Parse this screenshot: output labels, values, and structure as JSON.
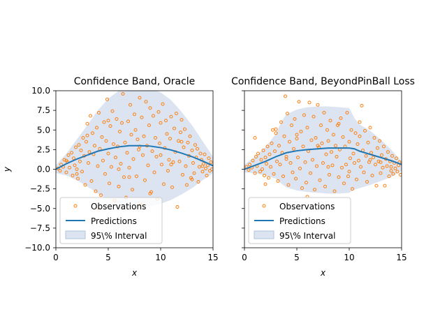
{
  "colors": {
    "observations": "#ff7f0e",
    "predictions": "#1f77b4",
    "band": "#b0c4de"
  },
  "chart_data": [
    {
      "type": "scatter",
      "title": "Confidence Band, Oracle",
      "xlabel": "x",
      "ylabel": "y",
      "xlim": [
        0,
        15
      ],
      "ylim": [
        -10,
        10
      ],
      "xticks": [
        "0",
        "5",
        "10",
        "15"
      ],
      "yticks": [
        "−10.0",
        "−7.5",
        "−5.0",
        "−2.5",
        "0.0",
        "2.5",
        "5.0",
        "7.5",
        "10.0"
      ],
      "legend": {
        "position": "lower-left",
        "entries": [
          "Observations",
          "Predictions",
          "95\\% Interval"
        ]
      },
      "prediction": {
        "x": [
          0,
          1,
          2,
          3,
          4,
          5,
          6,
          7,
          8,
          9,
          10,
          11,
          12,
          13,
          14,
          15
        ],
        "y": [
          0.0,
          0.7,
          1.3,
          1.8,
          2.3,
          2.6,
          2.85,
          3.0,
          3.0,
          2.95,
          2.75,
          2.45,
          2.05,
          1.6,
          1.05,
          0.45
        ]
      },
      "band": {
        "x": [
          0,
          1,
          2,
          3,
          4,
          5,
          6,
          7,
          8,
          9,
          10,
          11,
          12,
          13,
          14,
          15
        ],
        "upper": [
          0.5,
          2.0,
          3.8,
          5.6,
          7.5,
          9.0,
          10.0,
          10.5,
          10.5,
          10.3,
          9.8,
          8.8,
          7.3,
          5.6,
          3.6,
          1.6
        ],
        "lower": [
          -0.5,
          -0.8,
          -1.4,
          -2.2,
          -3.1,
          -3.9,
          -4.4,
          -4.7,
          -4.8,
          -4.7,
          -4.4,
          -3.9,
          -3.2,
          -2.4,
          -1.4,
          -0.5
        ]
      },
      "observations": {
        "x": [
          0.2,
          0.4,
          0.5,
          0.7,
          0.8,
          1.0,
          1.1,
          1.2,
          1.3,
          1.5,
          1.6,
          1.7,
          1.8,
          1.9,
          2.0,
          2.1,
          2.2,
          2.3,
          2.4,
          2.5,
          2.6,
          2.7,
          2.8,
          2.9,
          3.0,
          3.1,
          3.2,
          3.3,
          3.4,
          3.5,
          3.6,
          3.7,
          3.8,
          3.9,
          4.0,
          4.1,
          4.2,
          4.3,
          4.4,
          4.5,
          4.6,
          4.7,
          4.8,
          4.9,
          5.0,
          5.1,
          5.2,
          5.3,
          5.4,
          5.5,
          5.6,
          5.7,
          5.8,
          5.9,
          6.0,
          6.1,
          6.2,
          6.3,
          6.4,
          6.5,
          6.6,
          6.7,
          6.8,
          6.9,
          7.0,
          7.1,
          7.2,
          7.3,
          7.4,
          7.5,
          7.6,
          7.7,
          7.8,
          7.9,
          8.0,
          8.1,
          8.2,
          8.3,
          8.4,
          8.5,
          8.6,
          8.7,
          8.8,
          8.9,
          9.0,
          9.1,
          9.2,
          9.3,
          9.4,
          9.5,
          9.6,
          9.7,
          9.8,
          9.9,
          10.0,
          10.1,
          10.2,
          10.3,
          10.4,
          10.5,
          10.6,
          10.7,
          10.8,
          10.9,
          11.0,
          11.1,
          11.2,
          11.3,
          11.4,
          11.5,
          11.6,
          11.7,
          11.8,
          11.9,
          12.0,
          12.1,
          12.2,
          12.3,
          12.4,
          12.5,
          12.6,
          12.7,
          12.8,
          12.9,
          13.0,
          13.1,
          13.2,
          13.3,
          13.4,
          13.5,
          13.6,
          13.7,
          13.8,
          13.9,
          14.0,
          14.1,
          14.2,
          14.3,
          14.4,
          14.5,
          14.6,
          14.7,
          14.8,
          14.9,
          1.0,
          2.0,
          3.0,
          4.0,
          5.0,
          6.0,
          7.0,
          8.0,
          9.0,
          10.0,
          11.0,
          12.0,
          13.0,
          14.0
        ],
        "y": [
          0.1,
          -0.2,
          0.6,
          0.3,
          1.2,
          -0.4,
          0.9,
          1.8,
          0.2,
          2.1,
          -0.8,
          1.4,
          0.5,
          2.8,
          0.0,
          -1.2,
          3.1,
          1.0,
          2.4,
          -0.3,
          4.0,
          1.7,
          -2.0,
          3.5,
          5.8,
          0.8,
          2.2,
          6.8,
          -1.5,
          4.6,
          1.9,
          3.0,
          -2.8,
          5.3,
          0.4,
          7.2,
          2.6,
          -3.3,
          4.1,
          1.1,
          6.0,
          -0.6,
          3.6,
          8.9,
          2.0,
          -1.8,
          5.5,
          0.3,
          7.4,
          3.2,
          -4.0,
          1.5,
          6.4,
          2.9,
          -2.2,
          4.8,
          0.7,
          5.9,
          9.6,
          -1.0,
          3.4,
          -3.6,
          2.1,
          6.1,
          0.2,
          8.2,
          4.4,
          -2.6,
          1.3,
          7.0,
          5.0,
          -0.9,
          3.8,
          2.5,
          9.1,
          -4.5,
          6.6,
          1.8,
          4.2,
          -1.4,
          8.6,
          3.0,
          0.5,
          5.6,
          7.8,
          -2.9,
          2.3,
          6.8,
          -0.4,
          4.0,
          1.6,
          -3.8,
          7.3,
          3.3,
          5.9,
          0.6,
          8.3,
          -1.9,
          2.7,
          6.2,
          4.5,
          -0.2,
          1.2,
          3.9,
          6.7,
          -2.3,
          0.9,
          5.2,
          2.2,
          7.1,
          -4.8,
          3.6,
          1.0,
          4.7,
          6.3,
          -0.7,
          2.8,
          5.1,
          0.4,
          -2.0,
          3.4,
          1.7,
          4.2,
          -1.1,
          2.4,
          0.8,
          -0.5,
          3.1,
          1.5,
          2.6,
          -1.6,
          0.3,
          2.0,
          1.2,
          -0.3,
          0.7,
          1.9,
          0.1,
          -0.8,
          0.5,
          1.4,
          -0.2,
          0.9,
          0.0,
          1.1,
          -0.6,
          4.3,
          -5.0,
          6.2,
          0.0,
          -1.0,
          2.9,
          -3.1,
          1.8,
          0.6,
          3.5,
          -1.3,
          0.4
        ]
      }
    },
    {
      "type": "scatter",
      "title": "Confidence Band, BeyondPinBall Loss",
      "xlabel": "x",
      "ylabel": "",
      "xlim": [
        0,
        15
      ],
      "ylim": [
        -10,
        10
      ],
      "xticks": [
        "0",
        "5",
        "10",
        "15"
      ],
      "legend": {
        "position": "lower-left",
        "entries": [
          "Observations",
          "Predictions",
          "95\\% Interval"
        ]
      },
      "prediction": {
        "x": [
          0,
          1,
          2,
          3,
          4,
          5,
          6,
          7,
          8,
          9,
          10,
          10.5,
          11,
          12,
          13,
          14,
          15
        ],
        "y": [
          0.0,
          0.5,
          1.0,
          1.6,
          2.1,
          2.35,
          2.5,
          2.6,
          2.7,
          2.7,
          2.7,
          2.6,
          2.3,
          1.9,
          1.5,
          1.1,
          0.6
        ]
      },
      "band": {
        "x": [
          0,
          1,
          2,
          3,
          3.5,
          4,
          5,
          6,
          7,
          8,
          9,
          10,
          10.5,
          11,
          12,
          13,
          14,
          15
        ],
        "upper": [
          0.6,
          1.6,
          2.8,
          4.5,
          6.0,
          7.0,
          7.6,
          7.9,
          8.0,
          8.0,
          7.9,
          7.8,
          6.5,
          5.7,
          4.9,
          3.8,
          2.5,
          1.0
        ],
        "lower": [
          -0.4,
          -0.5,
          -0.8,
          -1.2,
          -1.8,
          -2.3,
          -2.7,
          -2.9,
          -3.0,
          -3.1,
          -3.1,
          -3.0,
          -2.6,
          -2.4,
          -2.0,
          -1.5,
          -1.0,
          -0.2
        ]
      },
      "observations": {
        "x": [
          0.2,
          0.4,
          0.5,
          0.7,
          0.8,
          1.0,
          1.1,
          1.2,
          1.3,
          1.5,
          1.6,
          1.7,
          1.8,
          1.9,
          2.0,
          2.1,
          2.2,
          2.3,
          2.4,
          2.5,
          2.6,
          2.7,
          2.8,
          2.9,
          3.0,
          3.1,
          3.2,
          3.3,
          3.4,
          3.5,
          3.6,
          3.7,
          3.8,
          3.9,
          4.0,
          4.1,
          4.2,
          4.3,
          4.4,
          4.5,
          4.6,
          4.7,
          4.8,
          4.9,
          5.0,
          5.1,
          5.2,
          5.3,
          5.4,
          5.5,
          5.6,
          5.7,
          5.8,
          5.9,
          6.0,
          6.1,
          6.2,
          6.3,
          6.4,
          6.5,
          6.6,
          6.7,
          6.8,
          6.9,
          7.0,
          7.1,
          7.2,
          7.3,
          7.4,
          7.5,
          7.6,
          7.7,
          7.8,
          7.9,
          8.0,
          8.1,
          8.2,
          8.3,
          8.4,
          8.5,
          8.6,
          8.7,
          8.8,
          8.9,
          9.0,
          9.1,
          9.2,
          9.3,
          9.4,
          9.5,
          9.6,
          9.7,
          9.8,
          9.9,
          10.0,
          10.1,
          10.2,
          10.3,
          10.4,
          10.5,
          10.6,
          10.7,
          10.8,
          10.9,
          11.0,
          11.1,
          11.2,
          11.3,
          11.4,
          11.5,
          11.6,
          11.7,
          11.8,
          11.9,
          12.0,
          12.1,
          12.2,
          12.3,
          12.4,
          12.5,
          12.6,
          12.7,
          12.8,
          12.9,
          13.0,
          13.1,
          13.2,
          13.3,
          13.4,
          13.5,
          13.6,
          13.7,
          13.8,
          13.9,
          14.0,
          14.1,
          14.2,
          14.3,
          14.4,
          14.5,
          14.6,
          14.7,
          14.8,
          14.9,
          1.0,
          2.0,
          3.0,
          4.0,
          5.0,
          6.0,
          7.0,
          8.0,
          9.0,
          10.0,
          11.0,
          12.0,
          13.0,
          14.0
        ],
        "y": [
          0.3,
          -0.1,
          0.6,
          0.2,
          1.1,
          -0.5,
          1.6,
          0.4,
          2.0,
          -0.3,
          1.2,
          0.0,
          2.4,
          -0.8,
          1.5,
          0.7,
          2.9,
          -1.1,
          1.9,
          0.3,
          3.3,
          5.0,
          -0.6,
          2.3,
          4.6,
          1.0,
          -1.5,
          3.0,
          0.6,
          6.0,
          2.1,
          -0.9,
          4.2,
          9.3,
          1.3,
          7.1,
          -2.0,
          3.5,
          0.8,
          5.6,
          -0.4,
          2.6,
          6.4,
          -1.2,
          3.9,
          1.5,
          8.6,
          0.1,
          4.8,
          -2.4,
          2.9,
          6.9,
          0.9,
          -1.7,
          5.3,
          2.3,
          8.5,
          -0.5,
          3.7,
          1.2,
          6.7,
          -2.6,
          4.0,
          0.4,
          8.2,
          2.8,
          -1.4,
          5.6,
          3.3,
          0.8,
          7.2,
          -2.2,
          1.9,
          5.0,
          3.6,
          -0.7,
          6.2,
          2.2,
          0.5,
          4.4,
          -2.8,
          3.0,
          1.6,
          5.6,
          -1.0,
          2.5,
          6.5,
          0.2,
          4.1,
          -1.8,
          2.9,
          0.6,
          7.2,
          -0.9,
          3.5,
          1.4,
          5.0,
          -2.5,
          2.0,
          0.8,
          4.6,
          -1.3,
          3.2,
          1.1,
          6.0,
          0.3,
          8.1,
          2.4,
          -0.4,
          4.9,
          1.7,
          -1.6,
          3.4,
          0.9,
          5.3,
          2.1,
          -0.8,
          1.5,
          4.0,
          0.6,
          -2.1,
          2.7,
          1.0,
          3.6,
          -0.5,
          1.8,
          0.2,
          2.9,
          -2.1,
          1.3,
          0.4,
          2.2,
          -0.9,
          1.0,
          0.3,
          1.7,
          -0.6,
          0.8,
          0.1,
          1.4,
          -0.3,
          0.5,
          0.9,
          -0.7,
          4.0,
          -1.9,
          5.1,
          1.6,
          4.4,
          -3.5,
          3.0,
          0.3,
          5.8,
          -0.3,
          4.2,
          1.2,
          0.9,
          -0.2
        ]
      }
    }
  ]
}
